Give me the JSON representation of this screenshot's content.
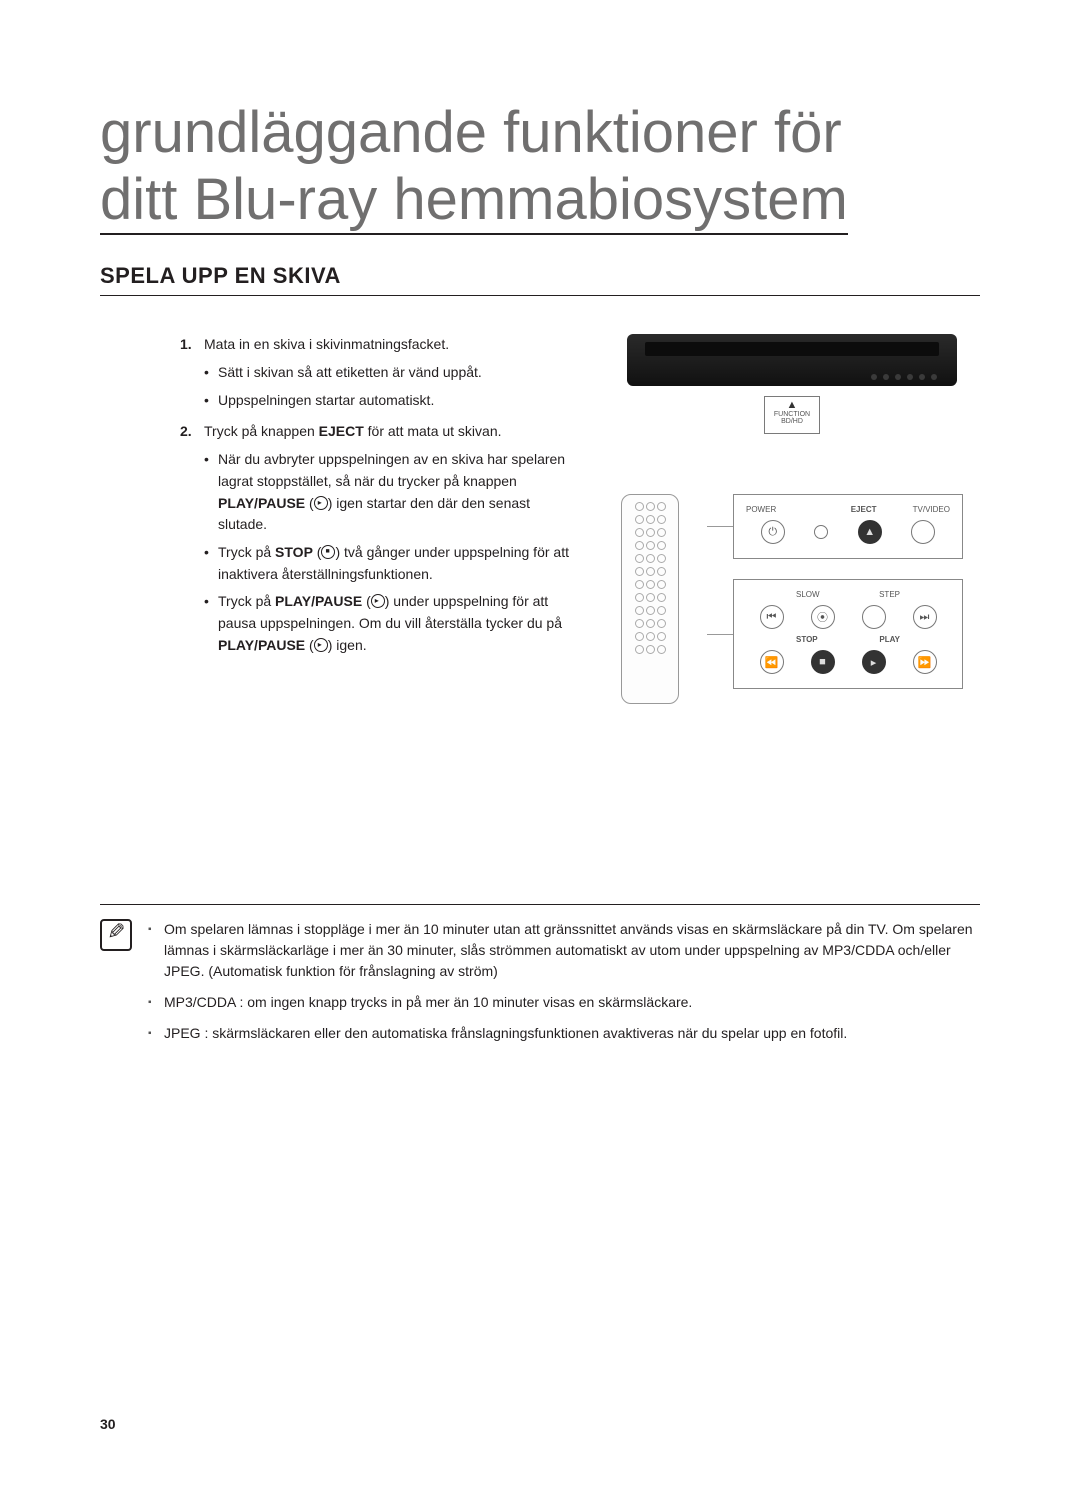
{
  "title_line1": "grundläggande funktioner för",
  "title_line2": "ditt Blu-ray hemmabiosystem",
  "section_heading": "SPELA UPP EN SKIVA",
  "steps": [
    {
      "text": "Mata in en skiva i skivinmatningsfacket.",
      "subs": [
        "Sätt i skivan så att etiketten är vänd uppåt.",
        "Uppspelningen startar automatiskt."
      ]
    },
    {
      "text_prefix": "Tryck på knappen ",
      "text_bold": "EJECT",
      "text_suffix": " för att mata ut skivan.",
      "subs_rich": [
        {
          "parts": [
            {
              "t": "När du avbryter uppspelningen av en skiva har spelaren lagrat stoppstället, så när du trycker på knappen "
            },
            {
              "t": "PLAY/PAUSE",
              "bold": true
            },
            {
              "t": " ("
            },
            {
              "icon": "pp"
            },
            {
              "t": ") igen startar den där den senast slutade."
            }
          ]
        },
        {
          "parts": [
            {
              "t": "Tryck på "
            },
            {
              "t": "STOP",
              "bold": true
            },
            {
              "t": " ("
            },
            {
              "icon": "stop"
            },
            {
              "t": ") två gånger under uppspelning för att inaktivera återställningsfunktionen."
            }
          ]
        },
        {
          "parts": [
            {
              "t": "Tryck på "
            },
            {
              "t": "PLAY/PAUSE",
              "bold": true
            },
            {
              "t": " ("
            },
            {
              "icon": "pp"
            },
            {
              "t": ") under uppspelning för att pausa uppspelningen. Om du vill återställa tycker du på "
            },
            {
              "t": "PLAY/PAUSE",
              "bold": true
            },
            {
              "t": " ("
            },
            {
              "icon": "pp"
            },
            {
              "t": ") igen."
            }
          ]
        }
      ]
    }
  ],
  "eject_callout": {
    "label1": "FUNCTION",
    "label2": "BD/HD",
    "tri": "▲"
  },
  "panel1": {
    "labels_left": "POWER",
    "labels_mid": "EJECT",
    "labels_right": "TV/VIDEO",
    "buttons": [
      {
        "sym": "⏻",
        "dark": false
      },
      {
        "sym": "",
        "dark": false,
        "small": true
      },
      {
        "sym": "▲",
        "dark": true
      },
      {
        "sym": "",
        "dark": false
      }
    ]
  },
  "panel2": {
    "row1_labels": {
      "l": "SLOW",
      "r": "STEP"
    },
    "row1": [
      {
        "sym": "⏮"
      },
      {
        "sym": "⦿"
      },
      {
        "sym": ""
      },
      {
        "sym": "⏭"
      }
    ],
    "row2_labels": {
      "l": "STOP",
      "r": "PLAY"
    },
    "row2": [
      {
        "sym": "⏪"
      },
      {
        "sym": "■",
        "dark": true
      },
      {
        "sym": "▸",
        "dark": true
      },
      {
        "sym": "⏩"
      }
    ]
  },
  "notes": [
    "Om spelaren lämnas i stoppläge i mer än 10 minuter utan att gränssnittet används visas en skärmsläckare på din TV. Om spelaren lämnas i skärmsläckarläge i mer än 30 minuter, slås strömmen automatiskt av utom under uppspelning av MP3/CDDA och/eller JPEG. (Automatisk funktion för frånslagning av ström)",
    "MP3/CDDA : om ingen knapp trycks in på mer än 10 minuter visas en skärmsläckare.",
    "JPEG : skärmsläckaren eller den automatiska frånslagningsfunktionen avaktiveras när du spelar upp en fotofil."
  ],
  "page_number": "30",
  "colors": {
    "title": "#706f6f",
    "text": "#231f20",
    "rule": "#231f20",
    "panel_border": "#888888"
  }
}
